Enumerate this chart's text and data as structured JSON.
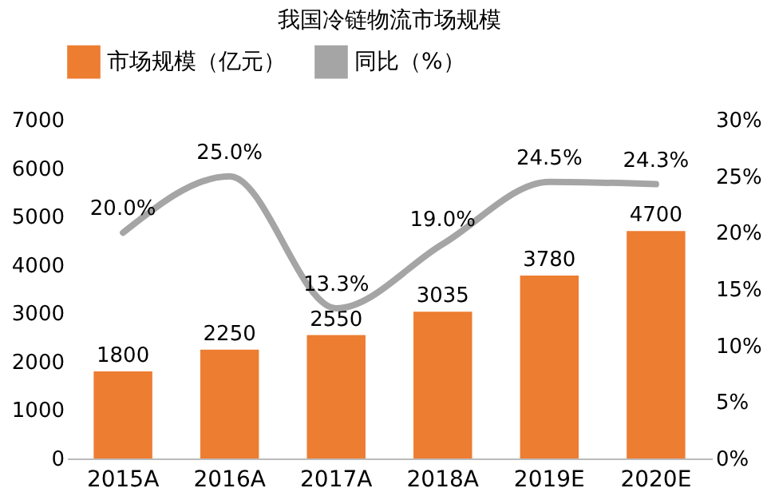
{
  "chart_data": {
    "type": "bar",
    "title": "我国冷链物流市场规模",
    "categories": [
      "2015A",
      "2016A",
      "2017A",
      "2018A",
      "2019E",
      "2020E"
    ],
    "series": [
      {
        "name": "市场规模（亿元）",
        "color": "#ed7d31",
        "values": [
          1800,
          2250,
          2550,
          3035,
          3780,
          4700
        ]
      },
      {
        "name": "同比（%）",
        "type": "line",
        "axis": "y2",
        "color": "#a5a5a5",
        "values": [
          20.0,
          25.0,
          13.3,
          19.0,
          24.5,
          24.3
        ],
        "value_labels": [
          "20.0%",
          "25.0%",
          "13.3%",
          "19.0%",
          "24.5%",
          "24.3%"
        ]
      }
    ],
    "data_labels": true,
    "ylim": [
      0,
      7000
    ],
    "yticks": [
      0,
      1000,
      2000,
      3000,
      4000,
      5000,
      6000,
      7000
    ],
    "y2lim": [
      0,
      30
    ],
    "y2ticks": [
      {
        "value": 0,
        "label": "0%"
      },
      {
        "value": 5,
        "label": "5%"
      },
      {
        "value": 10,
        "label": "10%"
      },
      {
        "value": 15,
        "label": "15%"
      },
      {
        "value": 20,
        "label": "20%"
      },
      {
        "value": 25,
        "label": "25%"
      },
      {
        "value": 30,
        "label": "30%"
      }
    ],
    "grid": false,
    "legend": "top"
  }
}
